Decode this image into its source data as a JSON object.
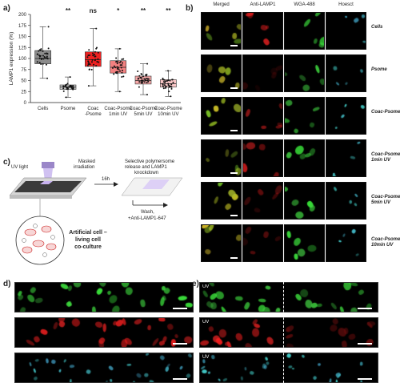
{
  "panels": {
    "a": "a)",
    "b": "b)",
    "c": "c)",
    "d": "d)",
    "e": "e)"
  },
  "chart_data": {
    "type": "box",
    "ylabel": "LAMP1 expression (%)",
    "ylim": [
      0,
      200
    ],
    "yticks": [
      0,
      25,
      50,
      75,
      100,
      125,
      150,
      175,
      200
    ],
    "categories": [
      "Cells",
      "Psome",
      "Coac -Psome",
      "Coac-Psome 1min UV",
      "Coac-Psome 5min UV",
      "Coac-Psome 10min UV"
    ],
    "category_lines": [
      [
        "Cells"
      ],
      [
        "Psome"
      ],
      [
        "Coac",
        "-Psome"
      ],
      [
        "Coac-Psome",
        "1min UV"
      ],
      [
        "Coac-Psome",
        "5min UV"
      ],
      [
        "Coac-Psome",
        "10min UV"
      ]
    ],
    "significance": [
      "",
      "**",
      "ns",
      "*",
      "**",
      "**"
    ],
    "boxes": [
      {
        "min": 55,
        "q1": 88,
        "median": 100,
        "q3": 118,
        "max": 172,
        "color": "#8c8c8c"
      },
      {
        "min": 12,
        "q1": 30,
        "median": 35,
        "q3": 40,
        "max": 58,
        "color": "#c8c8c8"
      },
      {
        "min": 38,
        "q1": 82,
        "median": 97,
        "q3": 115,
        "max": 168,
        "color": "#ee2222"
      },
      {
        "min": 25,
        "q1": 67,
        "median": 80,
        "q3": 95,
        "max": 122,
        "color": "#f28080"
      },
      {
        "min": 18,
        "q1": 42,
        "median": 50,
        "q3": 60,
        "max": 88,
        "color": "#f6a8a8"
      },
      {
        "min": 14,
        "q1": 35,
        "median": 43,
        "q3": 52,
        "max": 72,
        "color": "#f9c7c7"
      }
    ]
  },
  "microscopy": {
    "columns": [
      "Merged",
      "Anti-LAMP1",
      "WGA-488",
      "Hoesct"
    ],
    "rows": [
      {
        "label": "Cells",
        "red": 1.0
      },
      {
        "label": "Psome",
        "red": 0.2
      },
      {
        "label": "Coac-Psome",
        "red": 0.9
      },
      {
        "label": "Coac-Psome 1min UV",
        "red": 0.85
      },
      {
        "label": "Coac-Psome 5min UV",
        "red": 0.45
      },
      {
        "label": "Coac-Psome 10min UV",
        "red": 0.4
      }
    ]
  },
  "schematic": {
    "uv_light": "UV light",
    "masked_line1": "Masked",
    "masked_line2": "irradiation",
    "time": "16h",
    "release_line1": "Selective polymersome",
    "release_line2": "release and LAMP1",
    "release_line3": "knockdown",
    "wash_line1": "Wash,",
    "wash_line2": "+Anti-LAMP1-647",
    "coculture_line1": "Artificial cell –",
    "coculture_line2": "living cell",
    "coculture_line3": "co-culture"
  },
  "strips": {
    "d": [
      "green",
      "red",
      "cyan"
    ],
    "e": [
      "green",
      "red",
      "cyan"
    ],
    "uv_label": "UV"
  },
  "colors": {
    "green": "#3fd13f",
    "red": "#e02020",
    "cyan": "#3fc8d8",
    "uv_purple": "#b9a3e3"
  }
}
